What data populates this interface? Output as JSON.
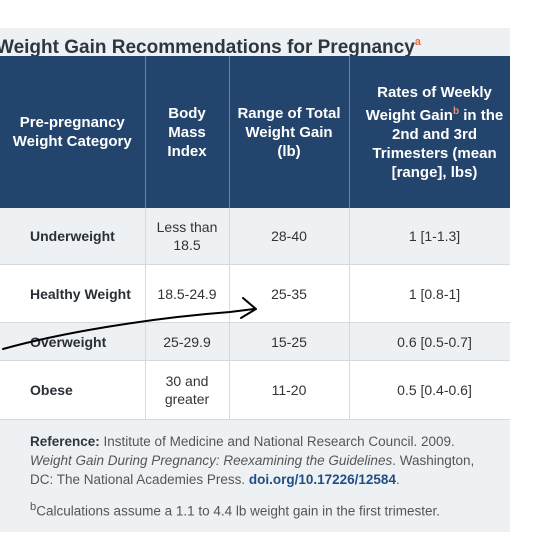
{
  "title": {
    "text": "Weight Gain Recommendations for Pregnancy",
    "sup": "a"
  },
  "headers": [
    {
      "text": "Pre-pregnancy Weight Category",
      "sup": ""
    },
    {
      "text": "Body Mass Index",
      "sup": ""
    },
    {
      "text": "Range of Total Weight Gain (lb)",
      "sup": ""
    },
    {
      "text_before": "Rates of Weekly Weight Gain",
      "sup": "b",
      "text_after": " in the 2nd and 3rd Trimesters (mean [range], lbs)"
    }
  ],
  "rows": [
    {
      "category": "Underweight",
      "bmi": "Less than 18.5",
      "range": "28-40",
      "rate": "1 [1-1.3]"
    },
    {
      "category": "Healthy Weight",
      "bmi": "18.5-24.9",
      "range": "25-35",
      "rate": "1 [0.8-1]"
    },
    {
      "category": "Overweight",
      "bmi": "25-29.9",
      "range": "15-25",
      "rate": "0.6 [0.5-0.7]"
    },
    {
      "category": "Obese",
      "bmi": "30 and greater",
      "range": "11-20",
      "rate": "0.5 [0.4-0.6]"
    }
  ],
  "reference": {
    "label": "Reference:",
    "text1": " Institute of Medicine and National Research Council. 2009.",
    "italic": "Weight Gain During Pregnancy: Reexamining the Guidelines",
    "text2": ". Washington,",
    "text3": "DC: The National Academies Press. ",
    "doi": "doi.org/10.17226/12584",
    "text4": "."
  },
  "footnote": {
    "sup": "b",
    "text": "Calculations assume a 1.1 to 4.4 lb weight gain in the first trimester."
  },
  "colors": {
    "header_bg": "#23446c",
    "accent": "#e8694a",
    "stripe": "#eef1f3",
    "link": "#1f4e86"
  },
  "annotation": {
    "type": "hand-drawn arrow",
    "color": "#000000",
    "points_to": "25-35"
  }
}
